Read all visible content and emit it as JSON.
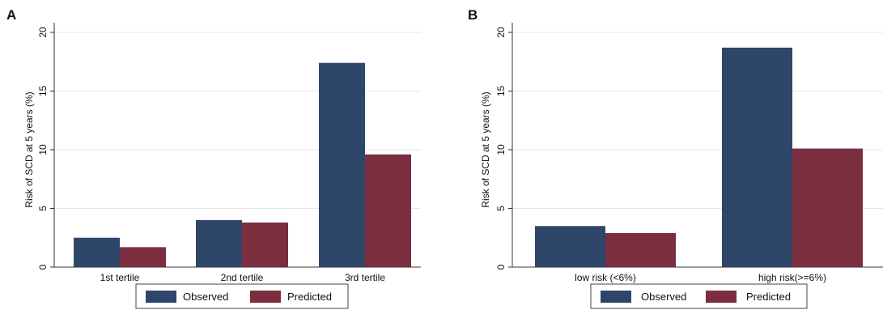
{
  "colors": {
    "observed": "#2f466b",
    "predicted": "#7a2e3e",
    "axis": "#333333",
    "grid": "#e6e6e6"
  },
  "chart_data": [
    {
      "panel": "A",
      "type": "bar",
      "categories": [
        "1st tertile",
        "2nd tertile",
        "3rd tertile"
      ],
      "series": [
        {
          "name": "Observed",
          "values": [
            2.5,
            4.0,
            17.4
          ]
        },
        {
          "name": "Predicted",
          "values": [
            1.7,
            3.8,
            9.6
          ]
        }
      ],
      "ylabel": "Risk of SCD at 5 years (%)",
      "xlabel": "",
      "ylim": [
        0,
        20
      ],
      "yticks": [
        0,
        5,
        10,
        15,
        20
      ],
      "grid": true,
      "legend": "bottom"
    },
    {
      "panel": "B",
      "type": "bar",
      "categories": [
        "low risk (<6%)",
        "high risk(>=6%)"
      ],
      "series": [
        {
          "name": "Observed",
          "values": [
            3.5,
            18.7
          ]
        },
        {
          "name": "Predicted",
          "values": [
            2.9,
            10.1
          ]
        }
      ],
      "ylabel": "Risk of SCD at 5 years (%)",
      "xlabel": "",
      "ylim": [
        0,
        20
      ],
      "yticks": [
        0,
        5,
        10,
        15,
        20
      ],
      "grid": true,
      "legend": "bottom"
    }
  ]
}
